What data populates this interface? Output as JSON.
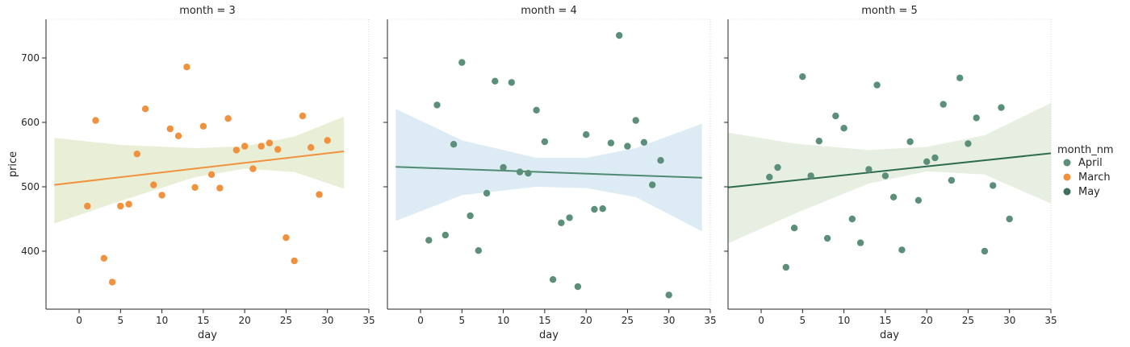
{
  "chart_data": {
    "type": "scatter",
    "ylabel": "price",
    "xlabel": "day",
    "xlim": [
      -4,
      35
    ],
    "ylim": [
      310,
      760
    ],
    "xticks": [
      0,
      5,
      10,
      15,
      20,
      25,
      30,
      35
    ],
    "yticks": [
      400,
      500,
      600,
      700
    ],
    "legend": {
      "title": "month_nm",
      "placement": "right",
      "entries": [
        {
          "label": "April",
          "color": "#5b8f7a"
        },
        {
          "label": "March",
          "color": "#f0913e"
        },
        {
          "label": "May",
          "color": "#3d6f5c"
        }
      ]
    },
    "facets": [
      {
        "title": "month = 3",
        "point_color": "#f0913e",
        "line_color": "#f0913e",
        "band_color": "#e5ebd0",
        "points": [
          [
            1,
            470
          ],
          [
            2,
            603
          ],
          [
            3,
            389
          ],
          [
            4,
            352
          ],
          [
            5,
            470
          ],
          [
            6,
            473
          ],
          [
            7,
            551
          ],
          [
            8,
            621
          ],
          [
            9,
            503
          ],
          [
            10,
            487
          ],
          [
            11,
            590
          ],
          [
            12,
            579
          ],
          [
            13,
            686
          ],
          [
            14,
            499
          ],
          [
            15,
            594
          ],
          [
            16,
            519
          ],
          [
            17,
            498
          ],
          [
            18,
            606
          ],
          [
            19,
            557
          ],
          [
            20,
            563
          ],
          [
            21,
            528
          ],
          [
            22,
            563
          ],
          [
            23,
            568
          ],
          [
            24,
            558
          ],
          [
            25,
            421
          ],
          [
            26,
            385
          ],
          [
            27,
            610
          ],
          [
            28,
            561
          ],
          [
            29,
            488
          ],
          [
            30,
            572
          ]
        ],
        "fit": {
          "x": [
            -3,
            32
          ],
          "y": [
            503,
            555
          ]
        },
        "band": {
          "x": [
            -3,
            5,
            14,
            20,
            26,
            32
          ],
          "lower": [
            443,
            478,
            515,
            528,
            523,
            497
          ],
          "upper": [
            576,
            565,
            560,
            563,
            578,
            609
          ]
        }
      },
      {
        "title": "month = 4",
        "point_color": "#5b8f7a",
        "line_color": "#4e8a72",
        "band_color": "#d7e8f2",
        "points": [
          [
            1,
            417
          ],
          [
            2,
            627
          ],
          [
            3,
            425
          ],
          [
            4,
            566
          ],
          [
            5,
            693
          ],
          [
            6,
            455
          ],
          [
            7,
            401
          ],
          [
            8,
            490
          ],
          [
            9,
            664
          ],
          [
            10,
            530
          ],
          [
            11,
            662
          ],
          [
            12,
            523
          ],
          [
            13,
            521
          ],
          [
            14,
            619
          ],
          [
            15,
            570
          ],
          [
            16,
            356
          ],
          [
            17,
            444
          ],
          [
            18,
            452
          ],
          [
            19,
            345
          ],
          [
            20,
            581
          ],
          [
            21,
            465
          ],
          [
            22,
            466
          ],
          [
            23,
            568
          ],
          [
            24,
            735
          ],
          [
            25,
            563
          ],
          [
            26,
            603
          ],
          [
            27,
            569
          ],
          [
            28,
            503
          ],
          [
            29,
            541
          ],
          [
            30,
            332
          ]
        ],
        "fit": {
          "x": [
            -3,
            34
          ],
          "y": [
            531,
            514
          ]
        },
        "band": {
          "x": [
            -3,
            5,
            14,
            20,
            26,
            34
          ],
          "lower": [
            447,
            487,
            500,
            498,
            484,
            431
          ],
          "upper": [
            621,
            572,
            545,
            545,
            560,
            598
          ]
        }
      },
      {
        "title": "month = 5",
        "point_color": "#5b8f7a",
        "line_color": "#2e6b50",
        "band_color": "#e2ecdd",
        "points": [
          [
            1,
            515
          ],
          [
            2,
            530
          ],
          [
            3,
            375
          ],
          [
            4,
            436
          ],
          [
            5,
            671
          ],
          [
            6,
            517
          ],
          [
            7,
            571
          ],
          [
            8,
            420
          ],
          [
            9,
            610
          ],
          [
            10,
            591
          ],
          [
            11,
            450
          ],
          [
            12,
            413
          ],
          [
            13,
            527
          ],
          [
            14,
            658
          ],
          [
            15,
            517
          ],
          [
            16,
            484
          ],
          [
            17,
            402
          ],
          [
            18,
            570
          ],
          [
            19,
            479
          ],
          [
            20,
            539
          ],
          [
            21,
            545
          ],
          [
            22,
            628
          ],
          [
            23,
            510
          ],
          [
            24,
            669
          ],
          [
            25,
            567
          ],
          [
            26,
            607
          ],
          [
            27,
            400
          ],
          [
            28,
            502
          ],
          [
            29,
            623
          ],
          [
            30,
            450
          ]
        ],
        "fit": {
          "x": [
            -4,
            35
          ],
          "y": [
            499,
            552
          ]
        },
        "band": {
          "x": [
            -4,
            4,
            13,
            20,
            27,
            35
          ],
          "lower": [
            412,
            458,
            505,
            524,
            519,
            474
          ],
          "upper": [
            584,
            567,
            557,
            562,
            580,
            630
          ]
        }
      }
    ]
  }
}
